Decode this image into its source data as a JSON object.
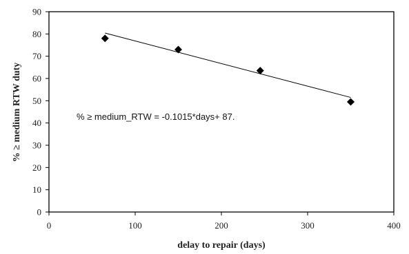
{
  "chart_data": {
    "type": "scatter",
    "x": [
      65,
      150,
      245,
      350
    ],
    "y": [
      78,
      73,
      63.5,
      49.5
    ],
    "xlabel": "delay to repair (days)",
    "ylabel": "% ≥ medium RTW duty",
    "xlim": [
      0,
      400
    ],
    "ylim": [
      0,
      90
    ],
    "xticks": [
      0,
      100,
      200,
      300,
      400
    ],
    "yticks": [
      0,
      10,
      20,
      30,
      40,
      50,
      60,
      70,
      80,
      90
    ],
    "trendline": {
      "slope": -0.1015,
      "intercept": 87,
      "x_range": [
        65,
        350
      ],
      "label": "% ≥ medium_RTW = -0.1015*days+ 87."
    },
    "grid": false,
    "legend": "none",
    "marker": "diamond",
    "marker_color": "#000000",
    "line_color": "#000000"
  }
}
